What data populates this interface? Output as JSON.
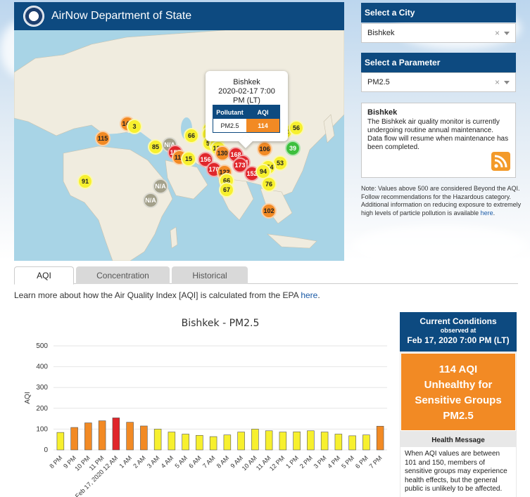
{
  "header": {
    "title": "AirNow Department of State"
  },
  "popup": {
    "city": "Bishkek",
    "datetime": "2020-02-17 7:00",
    "tz": "PM (LT)",
    "col_pollutant": "Pollutant",
    "col_aqi": "AQI",
    "pollutant": "PM2.5",
    "aqi": "114"
  },
  "markers": [
    {
      "label": "151",
      "cls": "m-red"
    },
    {
      "label": "142",
      "cls": "m-orange"
    },
    {
      "label": "3",
      "cls": "m-yellow"
    },
    {
      "label": "115",
      "cls": "m-orange"
    },
    {
      "label": "84",
      "cls": "m-yellow"
    },
    {
      "label": "105",
      "cls": "m-yellow"
    },
    {
      "label": "66",
      "cls": "m-yellow"
    },
    {
      "label": "80",
      "cls": "m-yellow"
    },
    {
      "label": "52",
      "cls": "m-yellow"
    },
    {
      "label": "56",
      "cls": "m-yellow"
    },
    {
      "label": "85",
      "cls": "m-yellow"
    },
    {
      "label": "N/A",
      "cls": "m-gray"
    },
    {
      "label": "58",
      "cls": "m-yellow"
    },
    {
      "label": "17",
      "cls": "m-yellow"
    },
    {
      "label": "134",
      "cls": "m-yellow"
    },
    {
      "label": "106",
      "cls": "m-orange"
    },
    {
      "label": "39",
      "cls": "m-green"
    },
    {
      "label": "155",
      "cls": "m-red"
    },
    {
      "label": "130",
      "cls": "m-orange"
    },
    {
      "label": "168",
      "cls": "m-red"
    },
    {
      "label": "112",
      "cls": "m-orange"
    },
    {
      "label": "15",
      "cls": "m-yellow"
    },
    {
      "label": "156",
      "cls": "m-red"
    },
    {
      "label": "174",
      "cls": "m-red"
    },
    {
      "label": "173",
      "cls": "m-red"
    },
    {
      "label": "53",
      "cls": "m-yellow"
    },
    {
      "label": "154",
      "cls": "m-yellow"
    },
    {
      "label": "170",
      "cls": "m-red"
    },
    {
      "label": "122",
      "cls": "m-orange"
    },
    {
      "label": "152",
      "cls": "m-red"
    },
    {
      "label": "94",
      "cls": "m-yellow"
    },
    {
      "label": "91",
      "cls": "m-yellow"
    },
    {
      "label": "66",
      "cls": "m-yellow"
    },
    {
      "label": "76",
      "cls": "m-yellow"
    },
    {
      "label": "N/A",
      "cls": "m-gray"
    },
    {
      "label": "67",
      "cls": "m-yellow"
    },
    {
      "label": "N/A",
      "cls": "m-gray"
    },
    {
      "label": "102",
      "cls": "m-orange"
    }
  ],
  "city_select": {
    "label": "Select a City",
    "value": "Bishkek"
  },
  "param_select": {
    "label": "Select a Parameter",
    "value": "PM2.5"
  },
  "info": {
    "title": "Bishkek",
    "text": "The Bishkek air quality monitor is currently undergoing routine annual maintenance. Data flow will resume when maintenance has been completed."
  },
  "note": {
    "text": "Note: Values above 500 are considered Beyond the AQI. Follow recommendations for the Hazardous category. Additional information on reducing exposure to extremely high levels of particle pollution is available ",
    "link": "here",
    "end": "."
  },
  "tabs": [
    {
      "label": "AQI"
    },
    {
      "label": "Concentration"
    },
    {
      "label": "Historical"
    }
  ],
  "learn": {
    "text": "Learn more about how the Air Quality Index [AQI] is calculated from the EPA ",
    "link": "here",
    "end": "."
  },
  "current": {
    "title": "Current Conditions",
    "observed": "observed at",
    "time": "Feb 17, 2020 7:00 PM (LT)",
    "aqi_line": "114 AQI",
    "cat1": "Unhealthy for",
    "cat2": "Sensitive Groups",
    "param": "PM2.5",
    "hm_title": "Health Message",
    "hm_text": "When AQI values are between 101 and 150, members of sensitive groups may experience health effects, but the general public is unlikely to be affected."
  },
  "colors": {
    "good": "#f7f02e",
    "sensitive": "#f28a24",
    "unhealthy": "#e0262b",
    "brand": "#0d4a80"
  },
  "chart_data": {
    "type": "bar",
    "title": "Bishkek - PM2.5",
    "ylabel": "AQI",
    "ylim": [
      0,
      500
    ],
    "yticks": [
      0,
      100,
      200,
      300,
      400,
      500
    ],
    "categories": [
      "8 PM",
      "9 PM",
      "10 PM",
      "11 PM",
      "Feb 17, 2020 12 AM",
      "1 AM",
      "2 AM",
      "3 AM",
      "4 AM",
      "5 AM",
      "6 AM",
      "7 AM",
      "8 AM",
      "9 AM",
      "10 AM",
      "11 AM",
      "12 PM",
      "1 PM",
      "2 PM",
      "3 PM",
      "4 PM",
      "5 PM",
      "6 PM",
      "7 PM"
    ],
    "values": [
      84,
      108,
      130,
      140,
      154,
      133,
      115,
      100,
      86,
      76,
      70,
      64,
      72,
      86,
      100,
      92,
      86,
      87,
      92,
      86,
      76,
      68,
      72,
      114
    ]
  }
}
